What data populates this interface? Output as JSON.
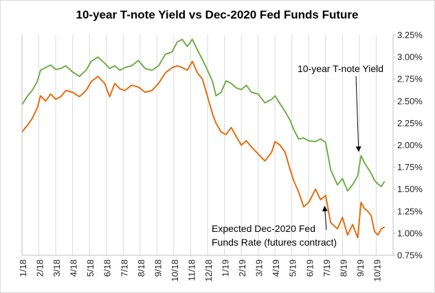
{
  "chart_data": {
    "type": "line",
    "title": "10-year T-note Yield vs Dec-2020 Fed Funds Future",
    "xlabel": "",
    "ylabel": "",
    "ylim": [
      0.75,
      3.25
    ],
    "yticks": [
      "0.75%",
      "1.00%",
      "1.25%",
      "1.50%",
      "1.75%",
      "2.00%",
      "2.25%",
      "2.50%",
      "2.75%",
      "3.00%",
      "3.25%"
    ],
    "xtick_labels": [
      "1/18",
      "2/18",
      "3/18",
      "4/18",
      "5/18",
      "6/18",
      "7/18",
      "8/18",
      "9/18",
      "10/18",
      "11/18",
      "12/18",
      "1/19",
      "2/19",
      "3/19",
      "4/19",
      "5/19",
      "6/19",
      "7/19",
      "8/19",
      "9/19",
      "10/19"
    ],
    "grid": "vertical",
    "legend": "none",
    "series": [
      {
        "name": "10-year T-note Yield",
        "color": "#70ad47",
        "x": [
          0,
          0.3,
          0.6,
          0.9,
          1.1,
          1.4,
          1.7,
          2.0,
          2.3,
          2.6,
          3.0,
          3.4,
          3.8,
          4.1,
          4.5,
          4.9,
          5.2,
          5.5,
          5.8,
          6.1,
          6.5,
          6.9,
          7.3,
          7.7,
          8.1,
          8.5,
          8.9,
          9.2,
          9.5,
          9.8,
          10.1,
          10.4,
          10.7,
          11.0,
          11.3,
          11.5,
          11.8,
          12.1,
          12.4,
          12.7,
          13.0,
          13.3,
          13.6,
          14.0,
          14.4,
          14.8,
          15.0,
          15.3,
          15.6,
          15.9,
          16.1,
          16.4,
          16.7,
          17.0,
          17.4,
          17.7,
          18.0,
          18.3,
          18.7,
          19.0,
          19.3,
          19.6,
          19.9,
          20.1,
          20.3,
          20.5,
          20.7,
          20.9,
          21.1,
          21.3,
          21.5
        ],
        "y": [
          2.46,
          2.55,
          2.62,
          2.72,
          2.85,
          2.88,
          2.91,
          2.86,
          2.87,
          2.9,
          2.83,
          2.78,
          2.85,
          2.95,
          3.0,
          2.93,
          2.87,
          2.9,
          2.85,
          2.88,
          2.9,
          2.96,
          2.87,
          2.85,
          2.9,
          3.03,
          3.06,
          3.17,
          3.2,
          3.12,
          3.2,
          3.08,
          2.97,
          2.85,
          2.72,
          2.56,
          2.6,
          2.73,
          2.7,
          2.65,
          2.63,
          2.68,
          2.6,
          2.58,
          2.48,
          2.52,
          2.56,
          2.47,
          2.38,
          2.28,
          2.18,
          2.07,
          2.08,
          2.05,
          2.04,
          2.07,
          2.03,
          1.72,
          1.55,
          1.62,
          1.48,
          1.55,
          1.65,
          1.88,
          1.8,
          1.74,
          1.68,
          1.6,
          1.56,
          1.53,
          1.59
        ]
      },
      {
        "name": "Expected Dec-2020 Fed Funds Rate (futures contract)",
        "color": "#e46c0a",
        "x": [
          0,
          0.3,
          0.6,
          0.9,
          1.1,
          1.4,
          1.7,
          2.0,
          2.3,
          2.6,
          3.0,
          3.4,
          3.8,
          4.1,
          4.5,
          4.9,
          5.2,
          5.5,
          5.8,
          6.1,
          6.5,
          6.9,
          7.3,
          7.7,
          8.1,
          8.5,
          8.9,
          9.2,
          9.5,
          9.8,
          10.1,
          10.4,
          10.7,
          11.0,
          11.3,
          11.5,
          11.8,
          12.1,
          12.4,
          12.7,
          13.0,
          13.3,
          13.6,
          14.0,
          14.4,
          14.8,
          15.0,
          15.3,
          15.6,
          15.9,
          16.1,
          16.4,
          16.7,
          17.0,
          17.4,
          17.7,
          18.0,
          18.3,
          18.7,
          19.0,
          19.3,
          19.6,
          19.9,
          20.1,
          20.3,
          20.5,
          20.7,
          20.9,
          21.1,
          21.3,
          21.5
        ],
        "y": [
          2.15,
          2.22,
          2.3,
          2.42,
          2.56,
          2.5,
          2.58,
          2.52,
          2.55,
          2.62,
          2.6,
          2.55,
          2.62,
          2.72,
          2.78,
          2.7,
          2.55,
          2.7,
          2.64,
          2.62,
          2.68,
          2.66,
          2.6,
          2.62,
          2.7,
          2.82,
          2.88,
          2.9,
          2.88,
          2.85,
          2.95,
          2.82,
          2.75,
          2.55,
          2.35,
          2.25,
          2.15,
          2.12,
          2.2,
          2.1,
          2.0,
          2.05,
          1.98,
          1.9,
          1.82,
          1.92,
          2.04,
          2.0,
          1.92,
          1.72,
          1.6,
          1.47,
          1.3,
          1.35,
          1.5,
          1.38,
          1.43,
          1.12,
          1.05,
          1.18,
          0.98,
          1.1,
          0.95,
          1.35,
          1.28,
          1.25,
          1.2,
          1.02,
          0.98,
          1.05,
          1.07
        ]
      }
    ],
    "annotations": [
      {
        "text": "10-year T-note Yield",
        "target_x": 20.0,
        "target_y": 1.9
      },
      {
        "text_lines": [
          "Expected Dec-2020 Fed",
          "Funds Rate (futures contract)"
        ],
        "target_x": 17.9,
        "target_y": 1.32
      }
    ]
  }
}
